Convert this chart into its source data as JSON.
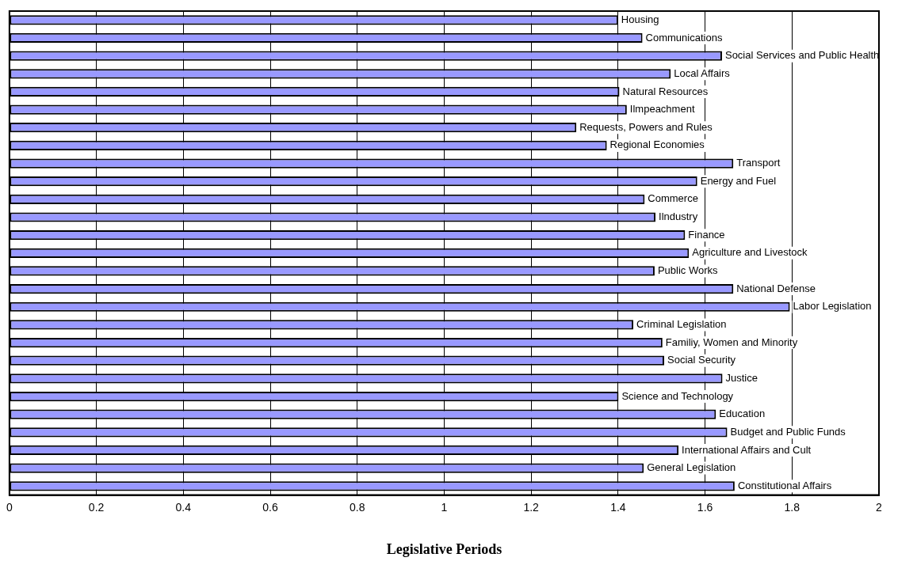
{
  "chart_data": {
    "type": "bar",
    "orientation": "horizontal",
    "xlabel": "Legislative Periods",
    "categories": [
      "Housing",
      "Communications",
      "Social Services and Public Health",
      "Local Affairs",
      "Natural Resources",
      "Ilmpeachment",
      "Requests, Powers and Rules",
      "Regional Economies",
      "Transport",
      "Energy and Fuel",
      "Commerce",
      "Ilndustry",
      "Finance",
      "Agriculture and Livestock",
      "Public Works",
      "National Defense",
      "Labor Legislation",
      "Criminal Legislation",
      "Familiy, Women and Minority",
      "Social Security",
      "Justice",
      "Science and Technology",
      "Education",
      "Budget and Public Funds",
      "International Affairs and Cult",
      "General Legislation",
      "Constitutional Affairs"
    ],
    "values": [
      1.4,
      1.456,
      1.639,
      1.521,
      1.403,
      1.42,
      1.304,
      1.374,
      1.665,
      1.582,
      1.461,
      1.486,
      1.554,
      1.563,
      1.484,
      1.665,
      1.795,
      1.435,
      1.502,
      1.506,
      1.64,
      1.401,
      1.625,
      1.651,
      1.539,
      1.459,
      1.668
    ],
    "color": "#9999ff",
    "xlim": [
      0,
      2
    ],
    "xticks": [
      0,
      0.2,
      0.4,
      0.6,
      0.8,
      1,
      1.2,
      1.4,
      1.6,
      1.8,
      2
    ],
    "grid": "x"
  }
}
